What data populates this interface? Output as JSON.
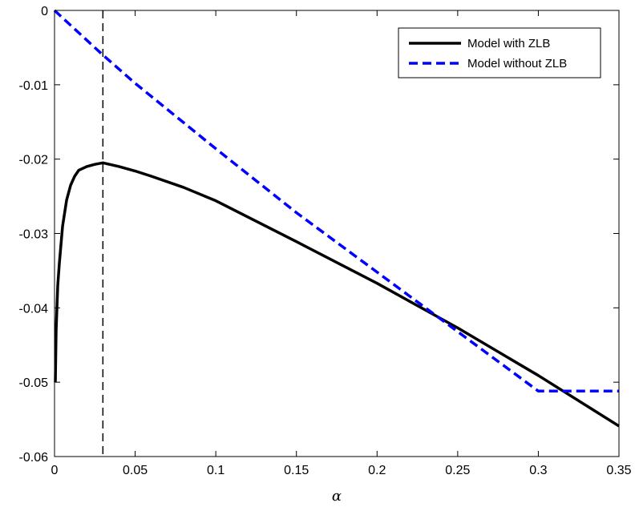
{
  "chart_data": {
    "type": "line",
    "title": "",
    "xlabel": "α",
    "ylabel": "",
    "xlim": [
      0,
      0.35
    ],
    "ylim": [
      -0.06,
      0
    ],
    "xticks": [
      0,
      0.05,
      0.1,
      0.15,
      0.2,
      0.25,
      0.3,
      0.35
    ],
    "xtick_labels": [
      "0",
      "0.05",
      "0.1",
      "0.15",
      "0.2",
      "0.25",
      "0.3",
      "0.35"
    ],
    "yticks": [
      -0.06,
      -0.05,
      -0.04,
      -0.03,
      -0.02,
      -0.01,
      0
    ],
    "ytick_labels": [
      "-0.06",
      "-0.05",
      "-0.04",
      "-0.03",
      "-0.02",
      "-0.01",
      "0"
    ],
    "grid": false,
    "legend_position": "top-right",
    "vertical_reference_line": {
      "x": 0.03,
      "style": "dashed",
      "color": "#000000"
    },
    "series": [
      {
        "name": "Model with ZLB",
        "color": "#000000",
        "style": "solid",
        "x": [
          0.0005,
          0.001,
          0.002,
          0.003,
          0.005,
          0.0075,
          0.01,
          0.0125,
          0.015,
          0.02,
          0.025,
          0.03,
          0.04,
          0.05,
          0.06,
          0.08,
          0.1,
          0.15,
          0.2,
          0.25,
          0.3,
          0.35
        ],
        "y": [
          -0.05,
          -0.043,
          -0.037,
          -0.034,
          -0.029,
          -0.0255,
          -0.0235,
          -0.0223,
          -0.0215,
          -0.021,
          -0.0207,
          -0.0205,
          -0.021,
          -0.0216,
          -0.0223,
          -0.0238,
          -0.0256,
          -0.0311,
          -0.0367,
          -0.0427,
          -0.0491,
          -0.0559
        ]
      },
      {
        "name": "Model without ZLB",
        "color": "#0000ff",
        "style": "dashed",
        "x": [
          0,
          0.03,
          0.05,
          0.1,
          0.15,
          0.2,
          0.25,
          0.3,
          0.35
        ],
        "y": [
          0,
          -0.006,
          -0.0098,
          -0.0186,
          -0.0272,
          -0.0352,
          -0.0432,
          -0.0512,
          -0.0512
        ]
      }
    ]
  }
}
